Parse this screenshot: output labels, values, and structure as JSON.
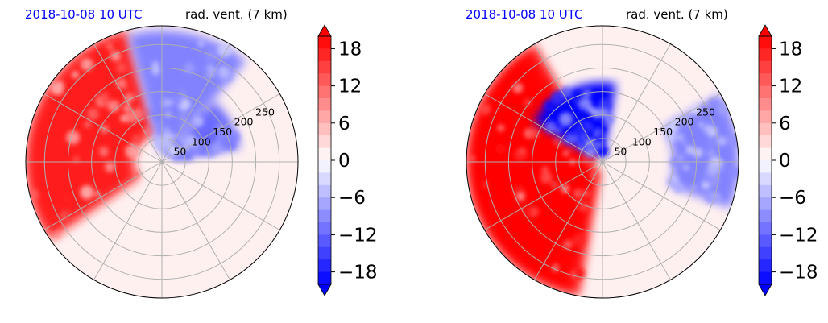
{
  "chart_data": [
    {
      "type": "heatmap",
      "projection": "polar",
      "title_left": "2018-10-08 10 UTC",
      "title_right": "rad. vent. (7 km)",
      "radial_ticks": [
        50,
        100,
        150,
        200,
        250
      ],
      "rmax": 290,
      "angular_grid_deg": [
        0,
        30,
        60,
        90,
        120,
        150,
        180,
        210,
        240,
        270,
        300,
        330
      ],
      "colorbar": {
        "vmin": -20,
        "vmax": 20,
        "step": 2,
        "ticks": [
          "18",
          "12",
          "6",
          "0",
          "−6",
          "−12",
          "−18"
        ],
        "tick_values": [
          18,
          12,
          6,
          0,
          -6,
          -12,
          -18
        ],
        "extend": "both",
        "colors": [
          "#0000ff",
          "#ffffff",
          "#ff0000"
        ]
      },
      "features": [
        {
          "sign": "positive",
          "sector": "west-northwest",
          "az_from": 235,
          "az_to": 345,
          "r_from": 60,
          "r_to": 290,
          "peak": 18
        },
        {
          "sign": "negative",
          "sector": "north",
          "az_from": 345,
          "az_to": 40,
          "r_from": 20,
          "r_to": 280,
          "peak": -10
        },
        {
          "sign": "negative",
          "sector": "northeast",
          "az_from": 40,
          "az_to": 80,
          "r_from": 30,
          "r_to": 170,
          "peak": -12
        }
      ]
    },
    {
      "type": "heatmap",
      "projection": "polar",
      "title_left": "2018-10-08 10 UTC",
      "title_right": "rad. vent. (7 km)",
      "radial_ticks": [
        50,
        100,
        150,
        200,
        250
      ],
      "rmax": 290,
      "angular_grid_deg": [
        0,
        30,
        60,
        90,
        120,
        150,
        180,
        210,
        240,
        270,
        300,
        330
      ],
      "colorbar": {
        "vmin": -20,
        "vmax": 20,
        "step": 2,
        "ticks": [
          "18",
          "12",
          "6",
          "0",
          "−6",
          "−12",
          "−18"
        ],
        "tick_values": [
          18,
          12,
          6,
          0,
          -6,
          -12,
          -18
        ],
        "extend": "both",
        "colors": [
          "#0000ff",
          "#ffffff",
          "#ff0000"
        ]
      },
      "features": [
        {
          "sign": "positive",
          "sector": "west-southwest",
          "az_from": 190,
          "az_to": 330,
          "r_from": 20,
          "r_to": 290,
          "peak": 20
        },
        {
          "sign": "negative",
          "sector": "northwest-near",
          "az_from": 300,
          "az_to": 10,
          "r_from": 20,
          "r_to": 170,
          "peak": -20
        },
        {
          "sign": "negative",
          "sector": "east",
          "az_from": 60,
          "az_to": 110,
          "r_from": 150,
          "r_to": 290,
          "peak": -10
        }
      ]
    }
  ]
}
